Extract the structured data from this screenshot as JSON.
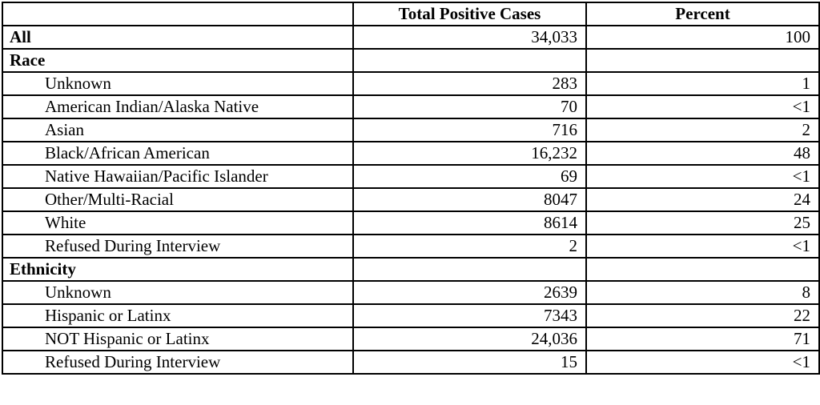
{
  "table": {
    "title_semantic": "positive-cases-by-race-ethnicity",
    "columns": {
      "label": "",
      "cases": "Total Positive Cases",
      "percent": "Percent"
    },
    "rows": [
      {
        "label": "All",
        "cases": "34,033",
        "percent": "100"
      },
      {
        "label": "Race",
        "cases": "",
        "percent": ""
      },
      {
        "label": "Unknown",
        "cases": "283",
        "percent": "1"
      },
      {
        "label": "American Indian/Alaska Native",
        "cases": "70",
        "percent": "<1"
      },
      {
        "label": "Asian",
        "cases": "716",
        "percent": "2"
      },
      {
        "label": "Black/African American",
        "cases": "16,232",
        "percent": "48"
      },
      {
        "label": "Native Hawaiian/Pacific Islander",
        "cases": "69",
        "percent": "<1"
      },
      {
        "label": "Other/Multi-Racial",
        "cases": "8047",
        "percent": "24"
      },
      {
        "label": "White",
        "cases": "8614",
        "percent": "25"
      },
      {
        "label": "Refused During Interview",
        "cases": "2",
        "percent": "<1"
      },
      {
        "label": "Ethnicity",
        "cases": "",
        "percent": ""
      },
      {
        "label": "Unknown",
        "cases": "2639",
        "percent": "8"
      },
      {
        "label": "Hispanic or Latinx",
        "cases": "7343",
        "percent": "22"
      },
      {
        "label": "NOT Hispanic or Latinx",
        "cases": "24,036",
        "percent": "71"
      },
      {
        "label": "Refused During Interview",
        "cases": "15",
        "percent": "<1"
      }
    ],
    "colors": {
      "border": "#000000",
      "text": "#000000",
      "background": "#ffffff"
    }
  }
}
